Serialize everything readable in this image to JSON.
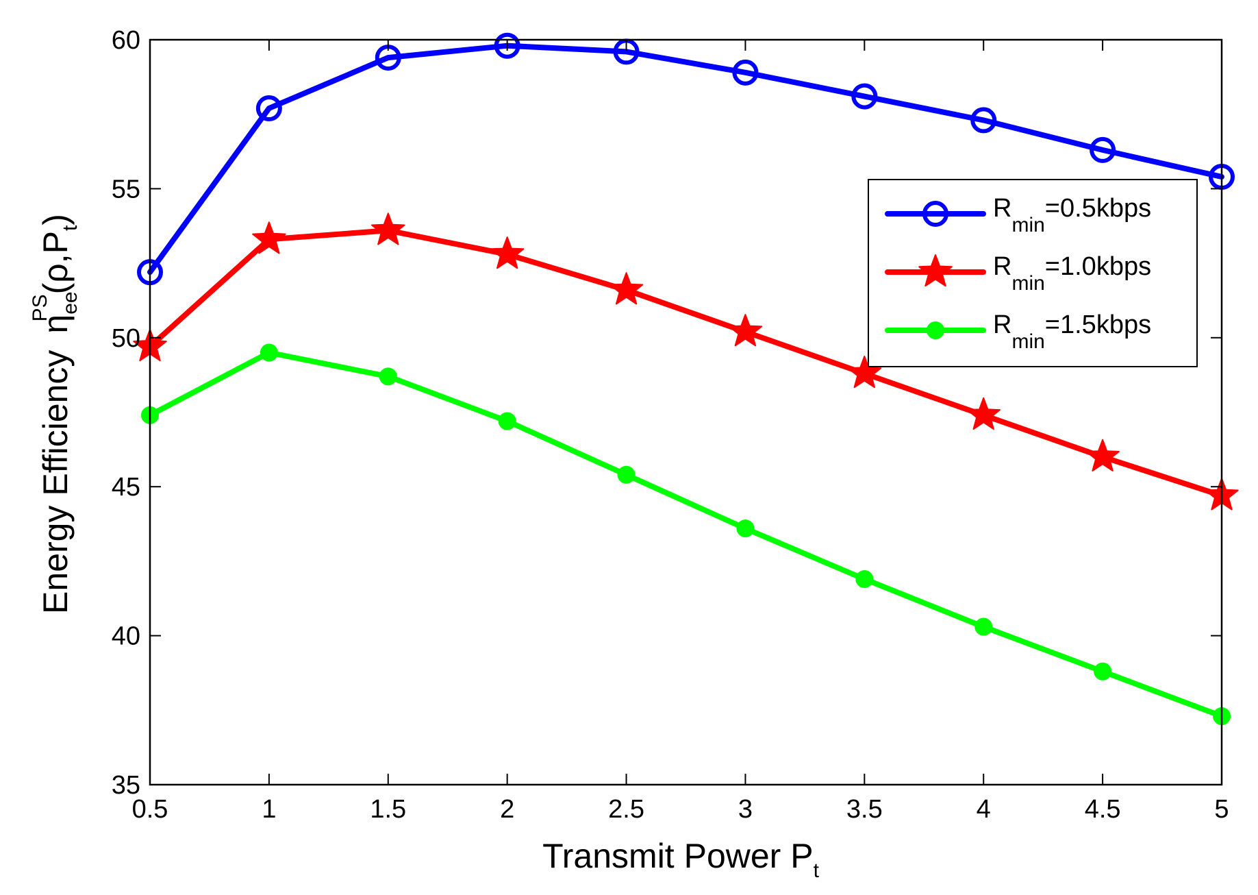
{
  "chart_data": {
    "type": "line",
    "title": "",
    "xlabel": {
      "main": "Transmit Power P",
      "sub": "t"
    },
    "ylabel": {
      "prefix": "Energy Efficiency",
      "symbol": "η",
      "sub": "ee",
      "sup": "PS",
      "args_open": "(ρ,P",
      "args_sub": "t",
      "args_close": ")"
    },
    "xlim": [
      0.5,
      5
    ],
    "ylim": [
      35,
      60
    ],
    "x": [
      0.5,
      1,
      1.5,
      2,
      2.5,
      3,
      3.5,
      4,
      4.5,
      5
    ],
    "xticks": [
      "0.5",
      "1",
      "1.5",
      "2",
      "2.5",
      "3",
      "3.5",
      "4",
      "4.5",
      "5"
    ],
    "yticks": [
      "35",
      "40",
      "45",
      "50",
      "55",
      "60"
    ],
    "grid": false,
    "legend_position": "upper-right",
    "series": [
      {
        "name": "R_min=0.5kbps",
        "label_main": "R",
        "label_sub": "min",
        "label_rest": "=0.5kbps",
        "color": "#0000ff",
        "marker": "circle-open",
        "values": [
          52.2,
          57.7,
          59.4,
          59.8,
          59.6,
          58.9,
          58.1,
          57.3,
          56.3,
          55.4
        ]
      },
      {
        "name": "R_min=1.0kbps",
        "label_main": "R",
        "label_sub": "min",
        "label_rest": "=1.0kbps",
        "color": "#ff0000",
        "marker": "star",
        "values": [
          49.7,
          53.3,
          53.6,
          52.8,
          51.6,
          50.2,
          48.8,
          47.4,
          46.0,
          44.7
        ]
      },
      {
        "name": "R_min=1.5kbps",
        "label_main": "R",
        "label_sub": "min",
        "label_rest": "=1.5kbps",
        "color": "#00ff00",
        "marker": "circle-filled",
        "values": [
          47.4,
          49.5,
          48.7,
          47.2,
          45.4,
          43.6,
          41.9,
          40.3,
          38.8,
          37.3
        ]
      }
    ]
  }
}
